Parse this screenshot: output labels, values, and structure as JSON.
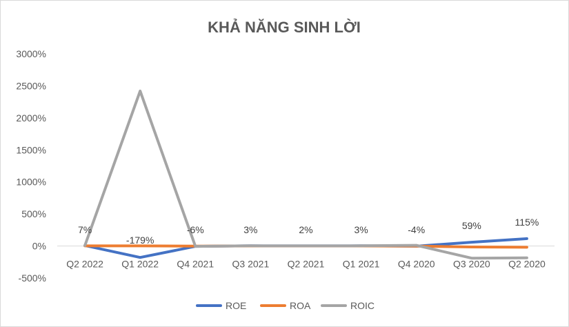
{
  "chart_data": {
    "type": "line",
    "title": "KHẢ NĂNG SINH LỜI",
    "categories": [
      "Q2 2022",
      "Q1 2022",
      "Q4 2021",
      "Q3 2021",
      "Q2 2021",
      "Q1 2021",
      "Q4 2020",
      "Q3 2020",
      "Q2 2020"
    ],
    "y_ticks": [
      "3000%",
      "2500%",
      "2000%",
      "1500%",
      "1000%",
      "500%",
      "0%",
      "-500%"
    ],
    "ylim": [
      -500,
      3000
    ],
    "y_step": 500,
    "grid": false,
    "legend_position": "bottom",
    "series": [
      {
        "name": "ROE",
        "color": "#4472c4",
        "values": [
          7,
          -179,
          -6,
          3,
          2,
          3,
          -4,
          59,
          115
        ]
      },
      {
        "name": "ROA",
        "color": "#ed7d31",
        "values": [
          2,
          2,
          -1,
          1,
          1,
          1,
          -1,
          -15,
          -20
        ]
      },
      {
        "name": "ROIC",
        "color": "#a5a5a5",
        "values": [
          7,
          2420,
          -6,
          3,
          2,
          3,
          10,
          -190,
          -185
        ]
      }
    ],
    "data_labels": [
      "7%",
      "-179%",
      "-6%",
      "3%",
      "2%",
      "3%",
      "-4%",
      "59%",
      "115%"
    ]
  }
}
